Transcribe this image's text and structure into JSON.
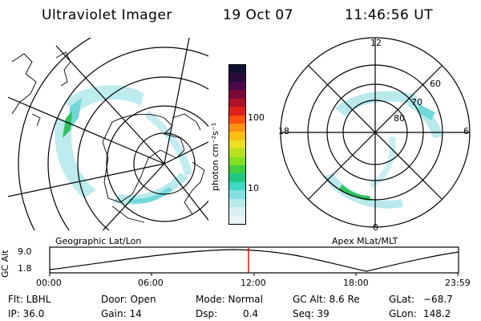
{
  "header": {
    "title": "Ultraviolet Imager",
    "date": "19 Oct 07",
    "time": "11:46:56 UT"
  },
  "colorbar": {
    "unit_label": "photon cm⁻²s⁻¹",
    "ticks": [
      "100",
      "10"
    ],
    "colors": [
      "#101030",
      "#2a0a3a",
      "#4a0a4a",
      "#7a0a3a",
      "#b0102a",
      "#e0201a",
      "#ff5010",
      "#ff9010",
      "#ffc010",
      "#e8e020",
      "#b8e020",
      "#80e020",
      "#40d040",
      "#20c880",
      "#40d8c0",
      "#80e0e0",
      "#b8e8e8",
      "#d8f0f0",
      "#e8f4f4"
    ]
  },
  "left_map": {
    "caption": "Geographic Lat/Lon",
    "colors": {
      "aurora_light": "#a8e4e8",
      "aurora_mid": "#70d8d8",
      "aurora_green": "#30c060"
    }
  },
  "right_map": {
    "caption": "Apex MLat/MLT",
    "mlt_labels": {
      "top": "12",
      "left": "18",
      "right": "6",
      "bottom": "0"
    },
    "lat_labels": [
      "60",
      "70",
      "80"
    ]
  },
  "altitude_plot": {
    "ylabel": "GC Alt",
    "ytick_top": "9.0",
    "ytick_bottom": "1.8",
    "xticks": [
      "00:00",
      "06:00",
      "12:00",
      "18:00",
      "23:59"
    ],
    "marker_color": "#ff0000"
  },
  "info": {
    "filter": "Flt: LBHL",
    "ip": "IP: 36.0",
    "door": "Door: Open",
    "gain": "Gain: 14",
    "mode": "Mode: Normal",
    "dsp_label": "Dsp:",
    "dsp_value": "0.4",
    "gc_alt": "GC Alt: 8.6 Re",
    "seq": "Seq: 39",
    "glat_label": "GLat:",
    "glat_value": "−68.7",
    "glon_label": "GLon:",
    "glon_value": "148.2"
  }
}
